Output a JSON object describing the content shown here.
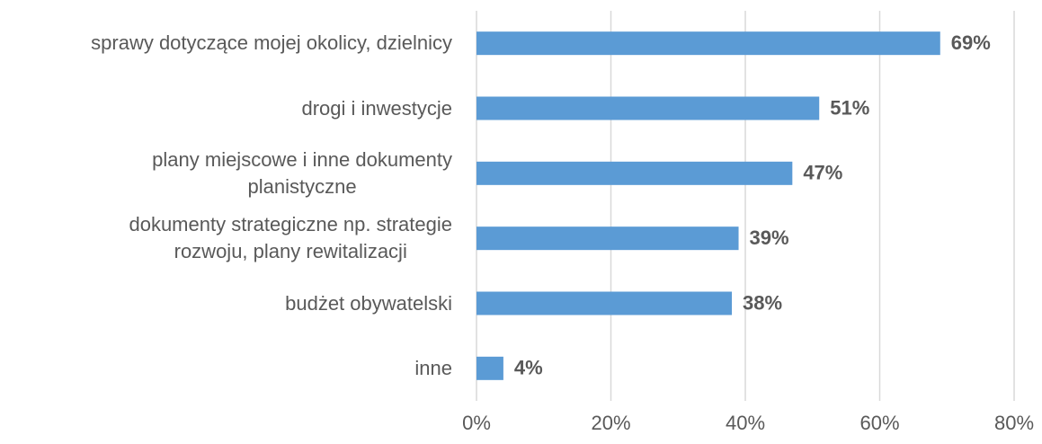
{
  "chart_data": {
    "type": "bar",
    "orientation": "horizontal",
    "categories": [
      "sprawy dotyczące mojej okolicy, dzielnicy",
      "drogi i inwestycje",
      "plany miejscowe i inne dokumenty\nplanistyczne",
      "dokumenty strategiczne np. strategie\nrozwoju, plany rewitalizacji",
      "budżet obywatelski",
      "inne"
    ],
    "values": [
      69,
      51,
      47,
      39,
      38,
      4
    ],
    "value_labels": [
      "69%",
      "51%",
      "47%",
      "39%",
      "38%",
      "4%"
    ],
    "color": "#5b9bd5",
    "xlim": [
      0,
      80
    ],
    "xticks": [
      {
        "value": 0,
        "label": "0%"
      },
      {
        "value": 20,
        "label": "20%"
      },
      {
        "value": 40,
        "label": "40%"
      },
      {
        "value": 60,
        "label": "60%"
      },
      {
        "value": 80,
        "label": "80%"
      }
    ],
    "grid": true
  }
}
